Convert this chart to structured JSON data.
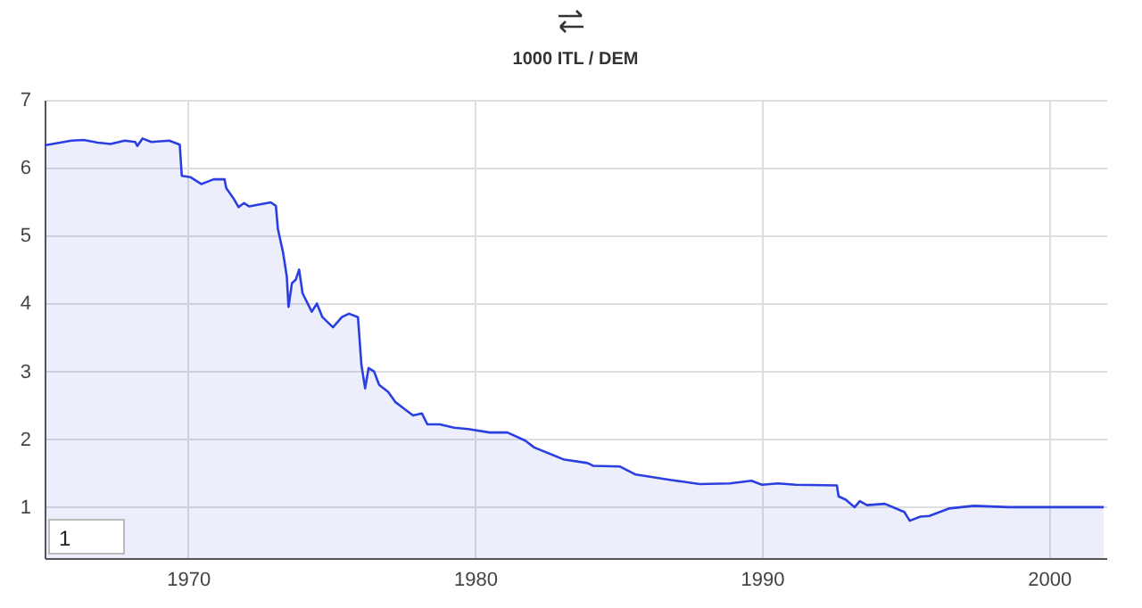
{
  "chart_data": {
    "type": "area",
    "title": "1000 ITL / DEM",
    "x": [
      1965.0,
      1965.93,
      1966.36,
      1966.86,
      1967.3,
      1967.79,
      1968.16,
      1968.23,
      1968.41,
      1968.72,
      1969.34,
      1969.59,
      1969.71,
      1969.78,
      1970.09,
      1970.46,
      1970.71,
      1970.89,
      1971.27,
      1971.33,
      1971.58,
      1971.76,
      1971.95,
      1972.13,
      1972.63,
      1972.88,
      1973.06,
      1973.13,
      1973.31,
      1973.44,
      1973.5,
      1973.62,
      1973.75,
      1973.87,
      1973.99,
      1974.31,
      1974.49,
      1974.68,
      1975.05,
      1975.36,
      1975.61,
      1975.92,
      1976.04,
      1976.17,
      1976.29,
      1976.48,
      1976.66,
      1976.97,
      1977.22,
      1977.53,
      1977.84,
      1978.15,
      1978.34,
      1978.77,
      1979.27,
      1979.76,
      1980.51,
      1981.13,
      1981.75,
      1982.06,
      1983.11,
      1983.92,
      1984.11,
      1985.04,
      1985.6,
      1986.84,
      1987.83,
      1988.88,
      1989.63,
      1990.0,
      1990.56,
      1991.18,
      1992.61,
      1992.67,
      1992.92,
      1993.23,
      1993.41,
      1993.66,
      1994.28,
      1994.96,
      1995.15,
      1995.52,
      1995.83,
      1996.51,
      1997.38,
      1998.62,
      2001.91
    ],
    "series": [
      {
        "color": "#2b3fe0",
        "values": [
          6.33,
          6.4,
          6.41,
          6.37,
          6.35,
          6.4,
          6.38,
          6.32,
          6.43,
          6.38,
          6.4,
          6.36,
          6.34,
          5.88,
          5.86,
          5.76,
          5.8,
          5.83,
          5.83,
          5.7,
          5.55,
          5.42,
          5.48,
          5.43,
          5.47,
          5.49,
          5.44,
          5.1,
          4.75,
          4.4,
          3.95,
          4.3,
          4.35,
          4.5,
          4.15,
          3.88,
          4.0,
          3.8,
          3.65,
          3.8,
          3.85,
          3.8,
          3.1,
          2.75,
          3.05,
          3.0,
          2.8,
          2.7,
          2.55,
          2.45,
          2.35,
          2.38,
          2.22,
          2.22,
          2.17,
          2.15,
          2.1,
          2.1,
          1.98,
          1.88,
          1.7,
          1.65,
          1.61,
          1.6,
          1.48,
          1.4,
          1.34,
          1.35,
          1.39,
          1.33,
          1.35,
          1.33,
          1.32,
          1.16,
          1.11,
          1.0,
          1.09,
          1.03,
          1.05,
          0.93,
          0.8,
          0.86,
          0.87,
          0.98,
          1.02,
          1.0,
          1.0
        ]
      }
    ],
    "xlim": [
      1965,
      2002
    ],
    "xticks": [
      1970,
      1980,
      1990,
      2000
    ],
    "ylim": [
      0.25,
      7
    ],
    "yticks": [
      1,
      2,
      3,
      4,
      5,
      6,
      7
    ],
    "grid": true,
    "annotations": [
      "1"
    ]
  }
}
